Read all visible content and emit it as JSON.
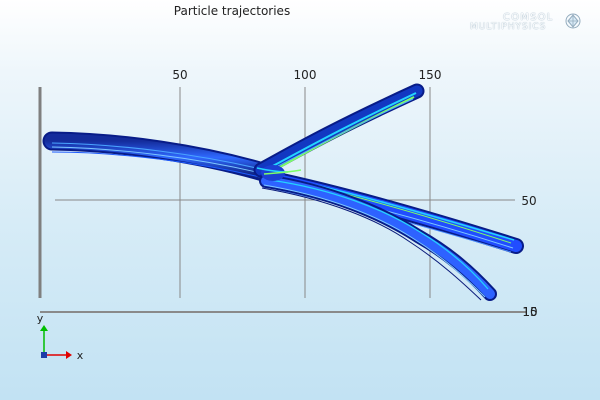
{
  "plot": {
    "title": "Particle trajectories",
    "logo": {
      "line1": "COMSOL",
      "line2": "MULTIPHYSICS",
      "mark_icon": "comsol-logo-icon"
    },
    "x_ticks": [
      "50",
      "100",
      "150"
    ],
    "y_ticks": [
      "50"
    ],
    "overlap_tick_labels": [
      "10",
      "15"
    ],
    "triad": {
      "x_label": "x",
      "y_label": "y"
    },
    "colors": {
      "background_top": "#ffffff",
      "background_bottom": "#c2e2f3",
      "trajectory_dark": "#0a1a7a",
      "trajectory_blue": "#2f7dff",
      "trajectory_cyan": "#23d4ff",
      "trajectory_green": "#7dff67",
      "axis_line": "#7f7f7f",
      "triad_x": "#e00000",
      "triad_y": "#00bf00"
    }
  }
}
